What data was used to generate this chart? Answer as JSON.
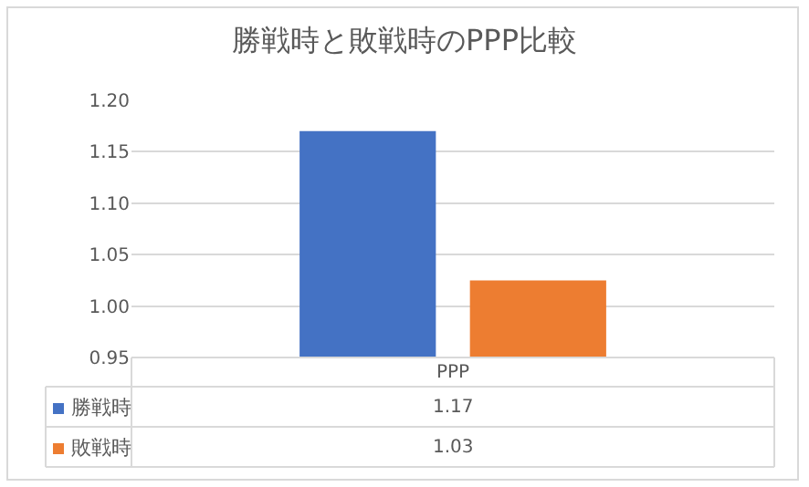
{
  "chart_data": {
    "type": "bar",
    "title": "勝戦時と敗戦時のPPP比較",
    "categories": [
      "PPP"
    ],
    "series": [
      {
        "name": "勝戦時",
        "color": "#4472c4",
        "values": [
          1.17
        ]
      },
      {
        "name": "敗戦時",
        "color": "#ed7d31",
        "values": [
          1.025
        ]
      }
    ],
    "annotations": [
      "1.17",
      "1.03"
    ],
    "ylim": [
      0.95,
      1.2
    ],
    "yticks": [
      {
        "value": 0.95,
        "label": "0.95"
      },
      {
        "value": 1.0,
        "label": "1.00"
      },
      {
        "value": 1.05,
        "label": "1.05"
      },
      {
        "value": 1.1,
        "label": "1.10"
      },
      {
        "value": 1.15,
        "label": "1.15"
      },
      {
        "value": 1.2,
        "label": "1.20"
      }
    ],
    "grid": "y",
    "legend": "bottom"
  }
}
